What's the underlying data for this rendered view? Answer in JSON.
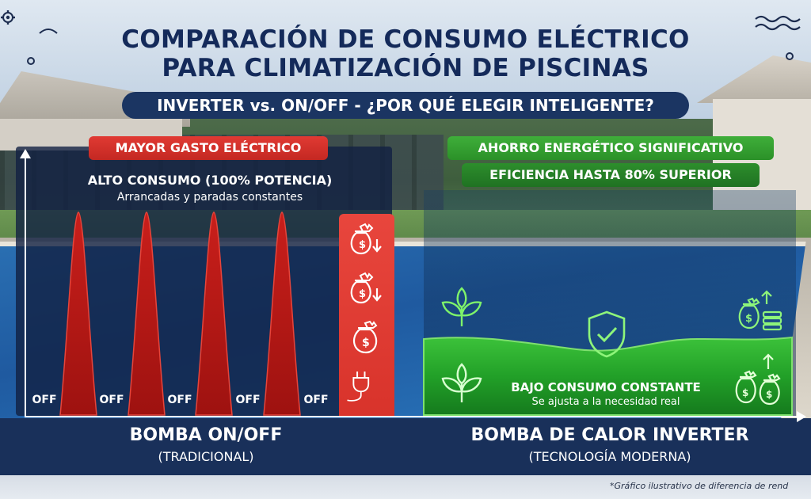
{
  "header": {
    "title_line1": "COMPARACIÓN DE CONSUMO ELÉCTRICO",
    "title_line2": "PARA CLIMATIZACIÓN DE PISCINAS",
    "subtitle": "INVERTER vs. ON/OFF - ¿POR QUÉ ELEGIR INTELIGENTE?"
  },
  "left": {
    "badge": "MAYOR GASTO ELÉCTRICO",
    "heading": "ALTO CONSUMO (100% POTENCIA)",
    "subheading": "Arrancadas y paradas constantes",
    "off_labels": [
      "OFF",
      "OFF",
      "OFF",
      "OFF",
      "OFF"
    ],
    "icons": [
      "money-bag-down-icon",
      "money-bag-down-icon",
      "money-bag-icon",
      "plug-icon"
    ],
    "bottom_title": "BOMBA ON/OFF",
    "bottom_subtitle": "(TRADICIONAL)"
  },
  "right": {
    "badge_1": "AHORRO ENERGÉTICO SIGNIFICATIVO",
    "badge_2": "EFICIENCIA HASTA 80% SUPERIOR",
    "heading": "BAJO CONSUMO CONSTANTE",
    "subheading": "Se ajusta a la necesidad real",
    "icons": [
      "leaf-icon",
      "shield-check-icon",
      "money-stack-up-icon",
      "leaf-icon",
      "money-bags-up-icon"
    ],
    "bottom_title": "BOMBA DE CALOR INVERTER",
    "bottom_subtitle": "(TECNOLOGÍA MODERNA)"
  },
  "footnote": "*Gráfico ilustrativo de diferencia de rend",
  "colors": {
    "navy": "#142a5a",
    "red": "#d8332b",
    "green": "#3fae3a",
    "bar": "#19305a"
  }
}
